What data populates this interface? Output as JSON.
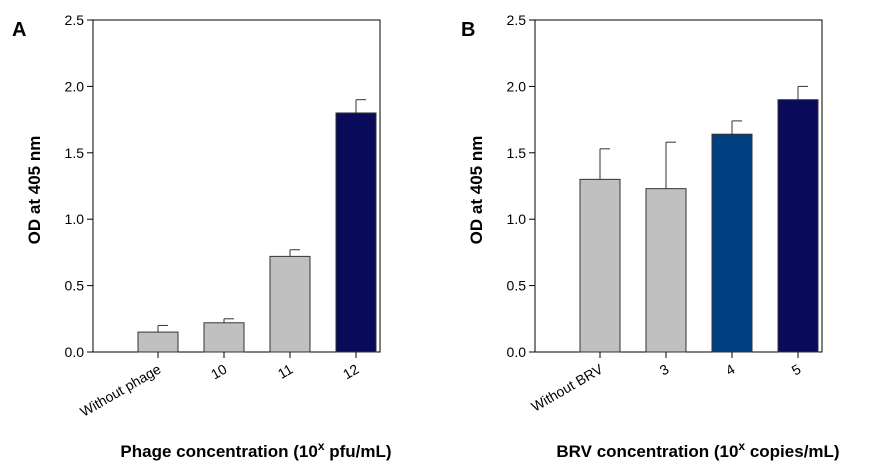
{
  "chart_data": [
    {
      "type": "bar",
      "panel_label": "A",
      "categories": [
        "Without phage",
        "10",
        "11",
        "12"
      ],
      "values": [
        0.15,
        0.22,
        0.72,
        1.8
      ],
      "errors": [
        0.05,
        0.03,
        0.05,
        0.1
      ],
      "colors": [
        "#c0c0c0",
        "#c0c0c0",
        "#c0c0c0",
        "#0a0a5a"
      ],
      "ylabel": "OD at 405 nm",
      "xlabel_prefix": "Phage concentration (10",
      "xlabel_sup": "x",
      "xlabel_suffix": " pfu/mL)",
      "ylim": [
        0,
        2.5
      ],
      "yticks": [
        "0.0",
        "0.5",
        "1.0",
        "1.5",
        "2.0",
        "2.5"
      ],
      "grid": false
    },
    {
      "type": "bar",
      "panel_label": "B",
      "categories": [
        "Without BRV",
        "3",
        "4",
        "5"
      ],
      "values": [
        1.3,
        1.23,
        1.64,
        1.9
      ],
      "errors": [
        0.23,
        0.35,
        0.1,
        0.1
      ],
      "colors": [
        "#c0c0c0",
        "#c0c0c0",
        "#003f7f",
        "#0a0a5a"
      ],
      "ylabel": "OD at 405 nm",
      "xlabel_prefix": "BRV concentration (10",
      "xlabel_sup": "x",
      "xlabel_suffix": " copies/mL)",
      "ylim": [
        0,
        2.5
      ],
      "yticks": [
        "0.0",
        "0.5",
        "1.0",
        "1.5",
        "2.0",
        "2.5"
      ],
      "grid": false
    }
  ]
}
